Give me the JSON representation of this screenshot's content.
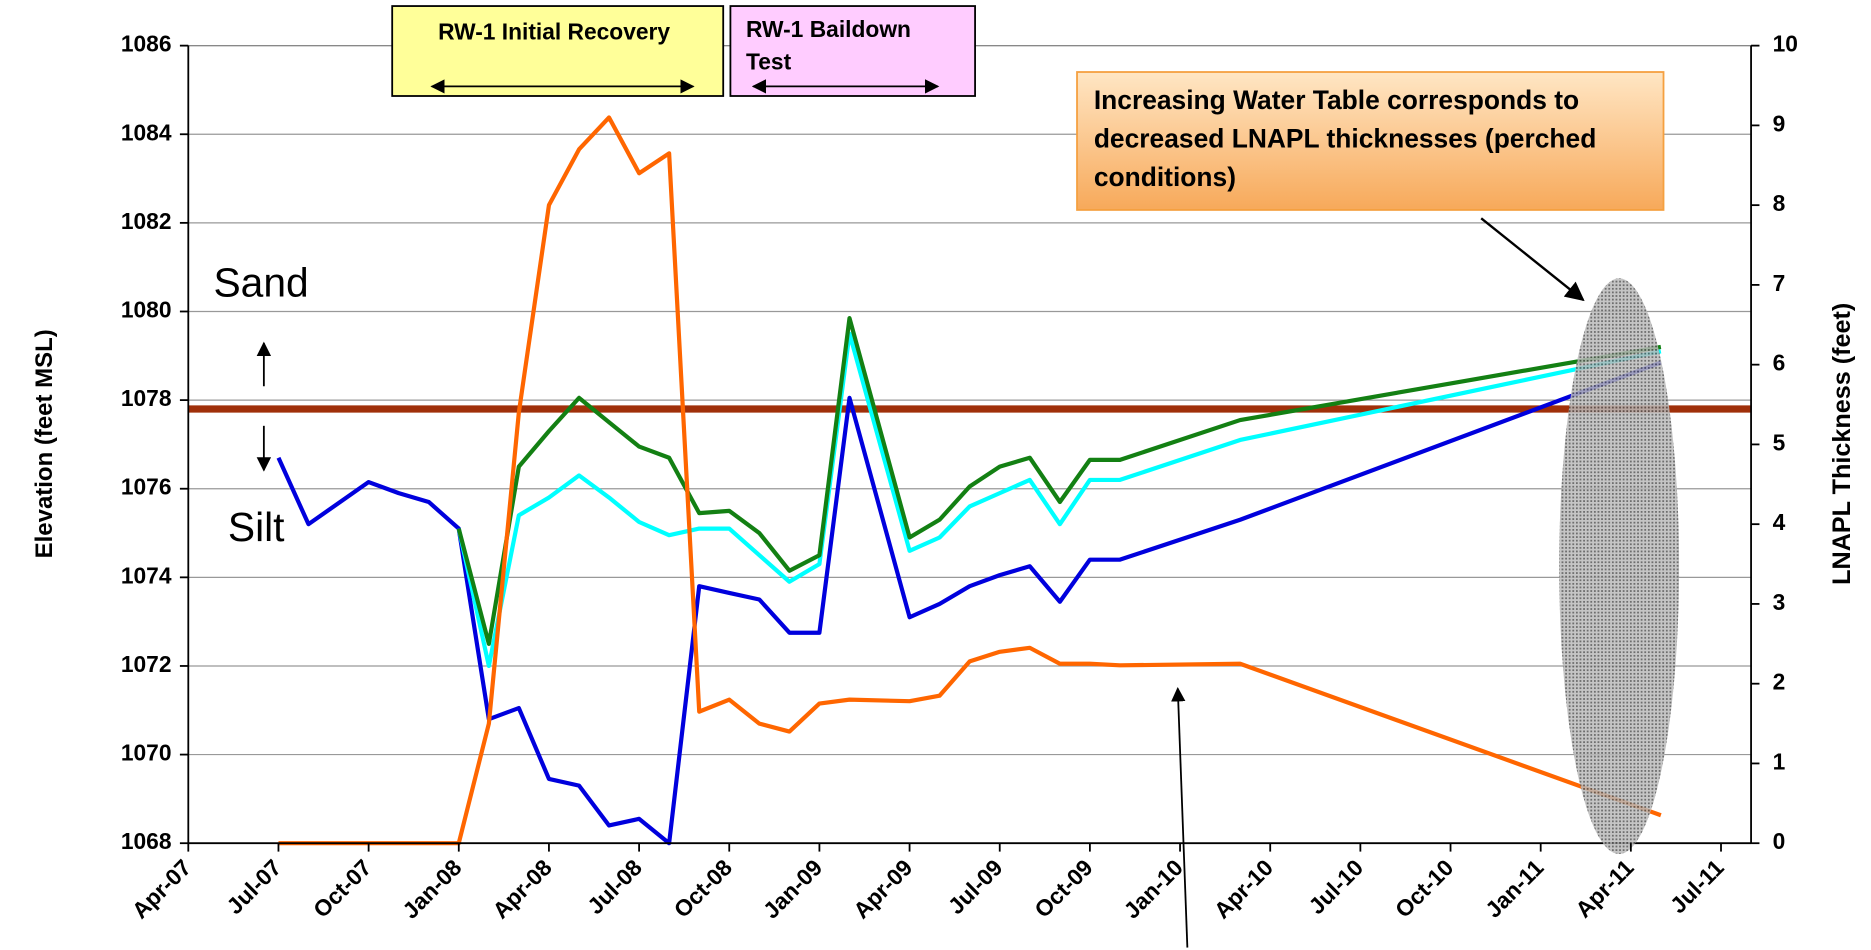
{
  "chart_data": {
    "type": "line",
    "y_label": "Elevation (feet MSL)",
    "y2_label": "LNAPL Thickness (feet)",
    "x": [
      "2007-07",
      "2007-08",
      "2007-10",
      "2007-11",
      "2007-12",
      "2008-01",
      "2008-02",
      "2008-03",
      "2008-04",
      "2008-05",
      "2008-06",
      "2008-07",
      "2008-08",
      "2008-09",
      "2008-10",
      "2008-11",
      "2008-12",
      "2009-01",
      "2009-02",
      "2009-04",
      "2009-05",
      "2009-06",
      "2009-07",
      "2009-08",
      "2009-09",
      "2009-10",
      "2009-11",
      "2010-03",
      "2011-05"
    ],
    "series": [
      {
        "color": "#0000dd",
        "values": [
          1076.7,
          1075.2,
          1076.15,
          1075.9,
          1075.7,
          1075.1,
          1070.8,
          1071.05,
          1069.45,
          1069.3,
          1068.4,
          1068.55,
          1068.0,
          1073.8,
          1073.65,
          1073.5,
          1072.75,
          1072.75,
          1078.05,
          1073.1,
          1073.4,
          1073.8,
          1074.05,
          1074.25,
          1073.45,
          1074.4,
          1074.4,
          1075.3,
          1078.85
        ]
      },
      {
        "color": "#00ffff",
        "values": [
          null,
          null,
          null,
          null,
          null,
          1075.1,
          1072.0,
          1075.4,
          1075.8,
          1076.3,
          1075.8,
          1075.25,
          1074.95,
          1075.1,
          1075.1,
          1074.5,
          1073.9,
          1074.3,
          1079.5,
          1074.6,
          1074.9,
          1075.6,
          1075.9,
          1076.2,
          1075.2,
          1076.2,
          1076.2,
          1077.1,
          1079.1
        ]
      },
      {
        "color": "#138013",
        "values": [
          null,
          null,
          null,
          null,
          null,
          1075.1,
          1072.5,
          1076.5,
          1077.3,
          1078.05,
          1077.5,
          1076.95,
          1076.7,
          1075.45,
          1075.5,
          1075.0,
          1074.15,
          1074.5,
          1079.85,
          1074.9,
          1075.3,
          1076.05,
          1076.5,
          1076.7,
          1075.7,
          1076.65,
          1076.65,
          1077.55,
          1079.2
        ]
      },
      {
        "color": "#ff6600",
        "axis": "y2",
        "values": [
          0,
          0,
          0,
          0,
          0,
          0,
          1.5,
          5.4,
          8.0,
          8.7,
          9.1,
          8.4,
          8.65,
          1.65,
          1.8,
          1.5,
          1.4,
          1.75,
          1.8,
          1.78,
          1.85,
          2.28,
          2.4,
          2.45,
          2.25,
          2.25,
          2.23,
          2.25,
          0.35
        ]
      }
    ],
    "reference_line": {
      "value": 1077.8,
      "color": "#a0300a"
    },
    "xlim": [
      "2007-04",
      "2011-08"
    ],
    "xticks": [
      {
        "value": "2007-04",
        "label": "Apr-07"
      },
      {
        "value": "2007-07",
        "label": "Jul-07"
      },
      {
        "value": "2007-10",
        "label": "Oct-07"
      },
      {
        "value": "2008-01",
        "label": "Jan-08"
      },
      {
        "value": "2008-04",
        "label": "Apr-08"
      },
      {
        "value": "2008-07",
        "label": "Jul-08"
      },
      {
        "value": "2008-10",
        "label": "Oct-08"
      },
      {
        "value": "2009-01",
        "label": "Jan-09"
      },
      {
        "value": "2009-04",
        "label": "Apr-09"
      },
      {
        "value": "2009-07",
        "label": "Jul-09"
      },
      {
        "value": "2009-10",
        "label": "Oct-09"
      },
      {
        "value": "2010-01",
        "label": "Jan-10"
      },
      {
        "value": "2010-04",
        "label": "Apr-10"
      },
      {
        "value": "2010-07",
        "label": "Jul-10"
      },
      {
        "value": "2010-10",
        "label": "Oct-10"
      },
      {
        "value": "2011-01",
        "label": "Jan-11"
      },
      {
        "value": "2011-04",
        "label": "Apr-11"
      },
      {
        "value": "2011-07",
        "label": "Jul-11"
      }
    ],
    "ylim": [
      1068,
      1086
    ],
    "yticks": [
      1068,
      1070,
      1072,
      1074,
      1076,
      1078,
      1080,
      1082,
      1084,
      1086
    ],
    "y2lim": [
      0,
      10
    ],
    "y2ticks": [
      0,
      1,
      2,
      3,
      4,
      5,
      6,
      7,
      8,
      9,
      10
    ],
    "y2_color": "#ff6600",
    "grid": true,
    "annotations": {
      "sand": "Sand",
      "silt": "Silt",
      "initial_recovery": "RW-1 Initial Recovery",
      "baildown": "RW-1 Baildown Test",
      "callout": "Increasing Water Table corresponds to decreased LNAPL thicknesses (perched conditions)"
    }
  }
}
